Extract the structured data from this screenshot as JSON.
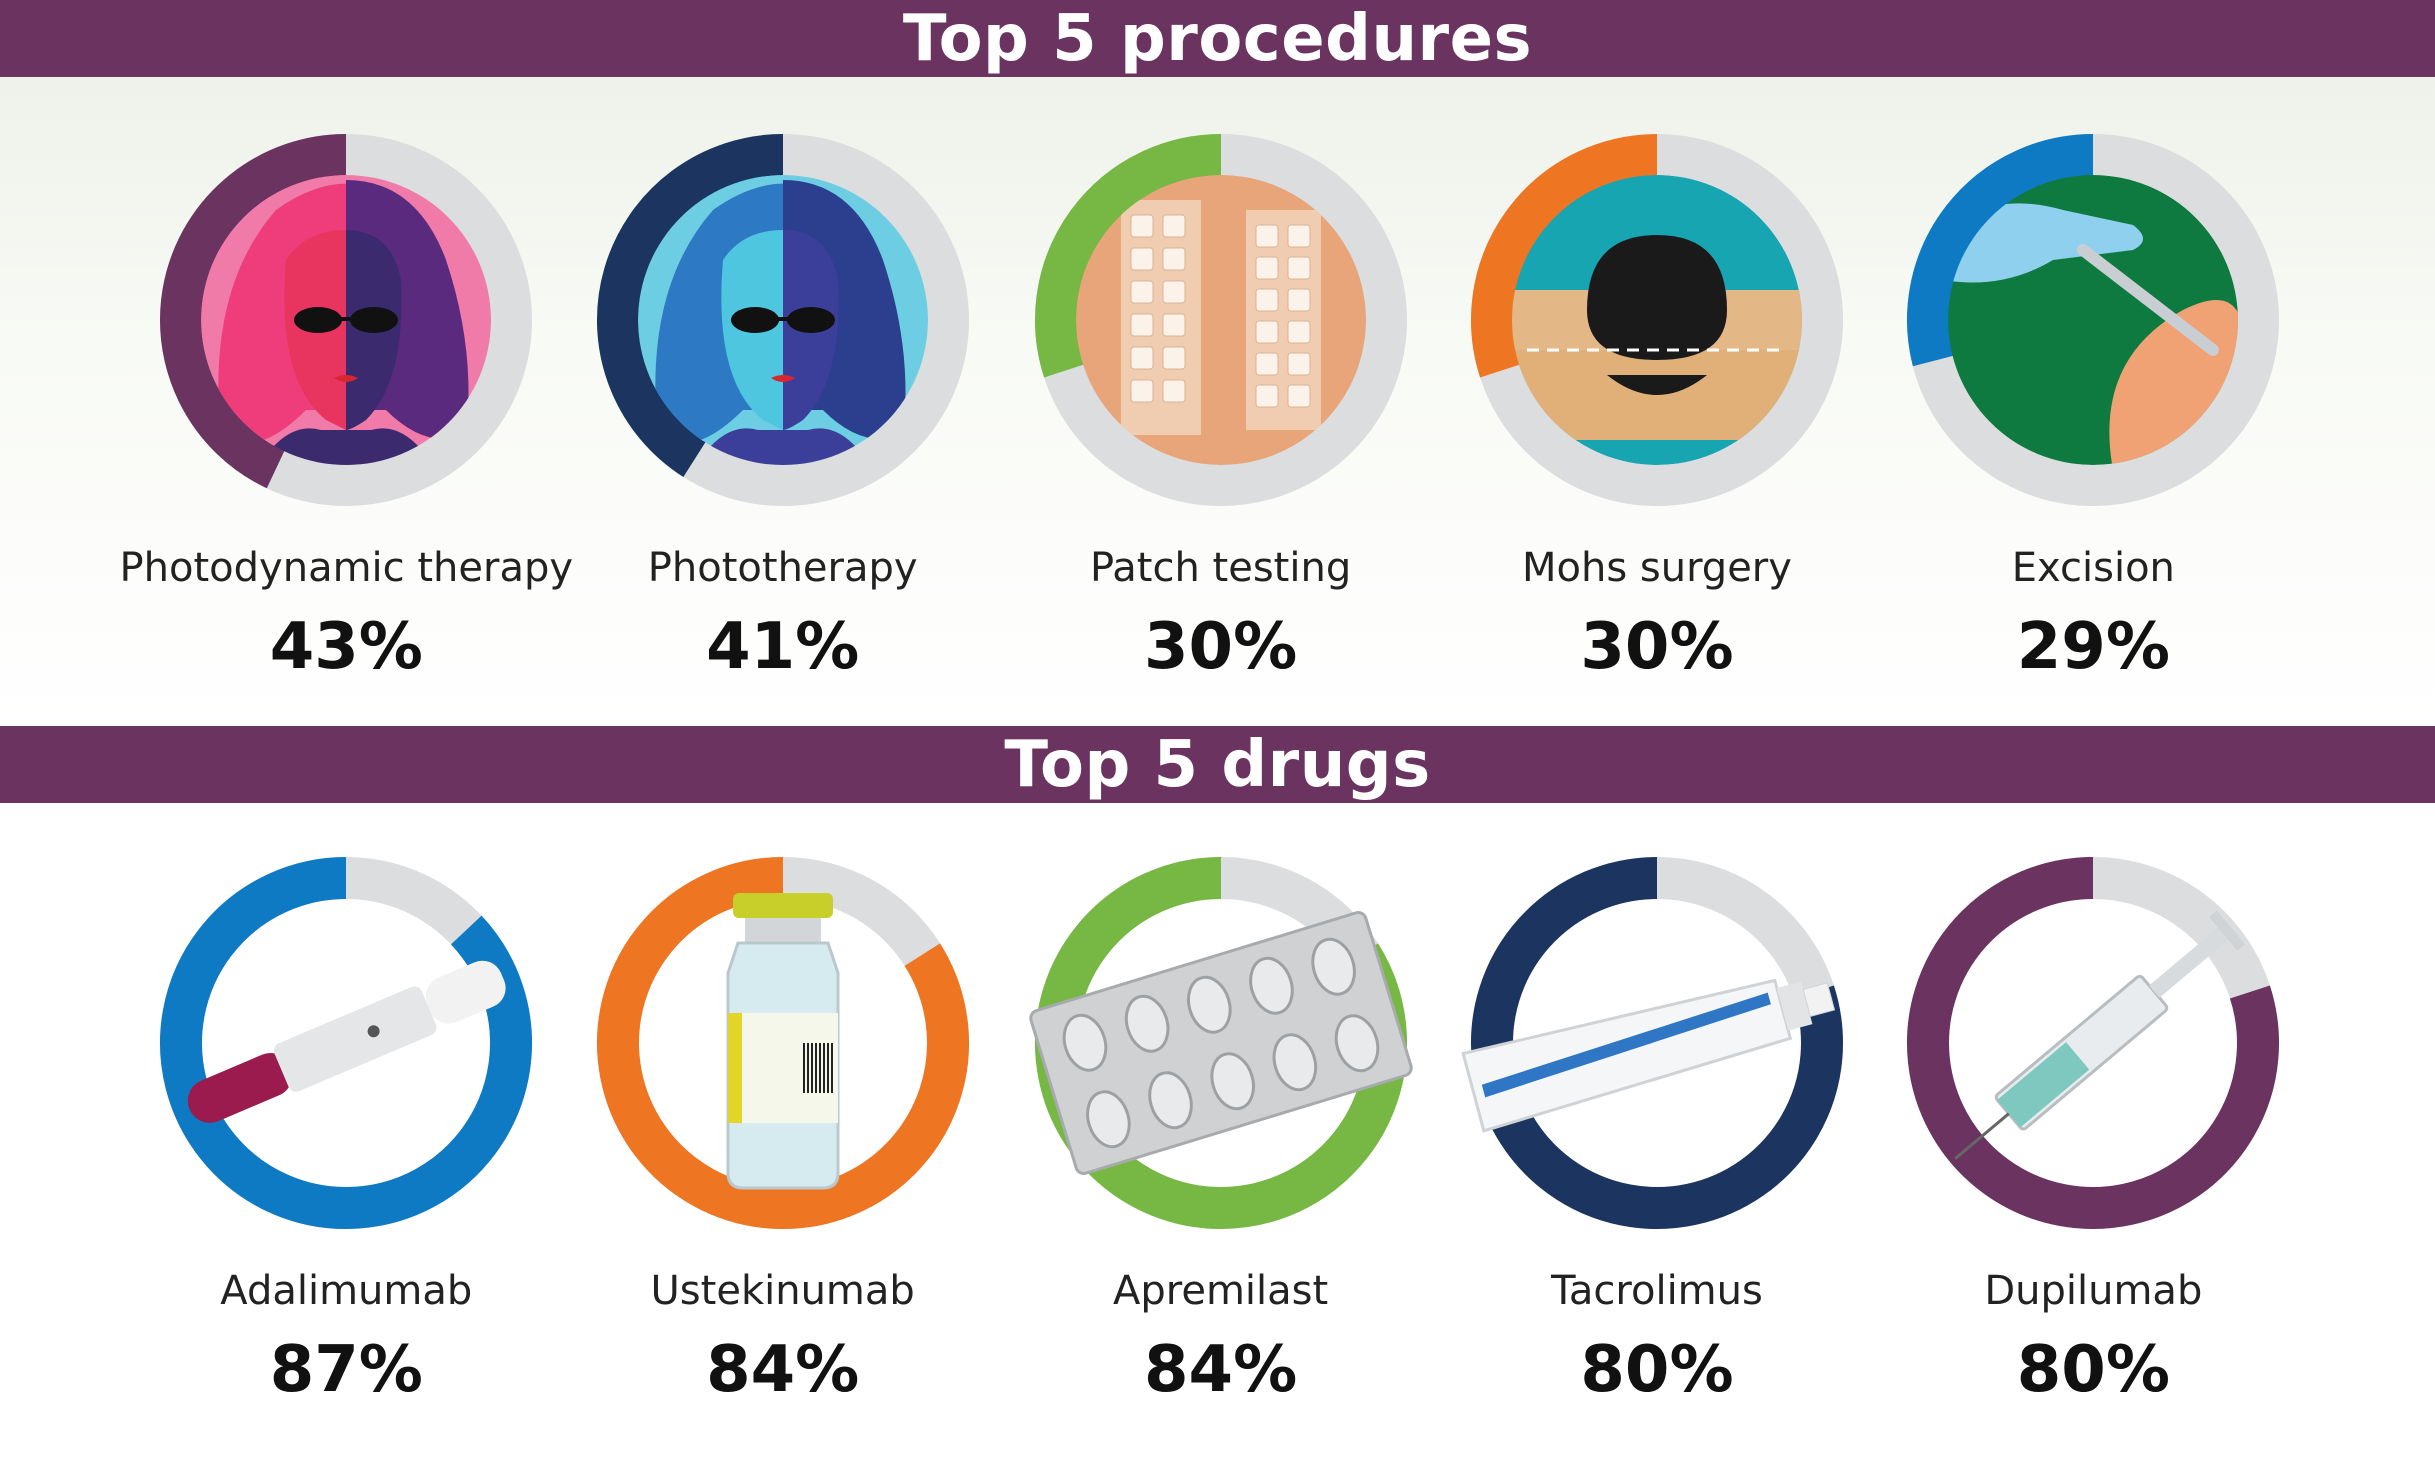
{
  "chart_data": [
    {
      "type": "pie",
      "title": "Top 5 procedures",
      "categories": [
        "Photodynamic therapy",
        "Phototherapy",
        "Patch testing",
        "Mohs surgery",
        "Excision"
      ],
      "values": [
        43,
        41,
        30,
        30,
        29
      ],
      "value_labels": [
        "43%",
        "41%",
        "30%",
        "30%",
        "29%"
      ],
      "colors": [
        "#6a3360",
        "#1b3560",
        "#76b843",
        "#ee7623",
        "#0f7ac4"
      ],
      "remainder_color": "#dcddde",
      "unit": "%"
    },
    {
      "type": "pie",
      "title": "Top 5 drugs",
      "categories": [
        "Adalimumab",
        "Ustekinumab",
        "Apremilast",
        "Tacrolimus",
        "Dupilumab"
      ],
      "values": [
        87,
        84,
        84,
        80,
        80
      ],
      "value_labels": [
        "87%",
        "84%",
        "84%",
        "80%",
        "80%"
      ],
      "colors": [
        "#0f7ac4",
        "#ee7623",
        "#76b843",
        "#1b3560",
        "#6a3360"
      ],
      "remainder_color": "#dcddde",
      "unit": "%"
    }
  ],
  "icons": {
    "procedures": [
      "photodynamic-therapy-icon",
      "phototherapy-icon",
      "patch-testing-icon",
      "mohs-surgery-icon",
      "excision-icon"
    ],
    "drugs": [
      "auto-injector-pen-icon",
      "vial-icon",
      "blister-pack-icon",
      "ointment-tube-icon",
      "syringe-icon"
    ]
  }
}
